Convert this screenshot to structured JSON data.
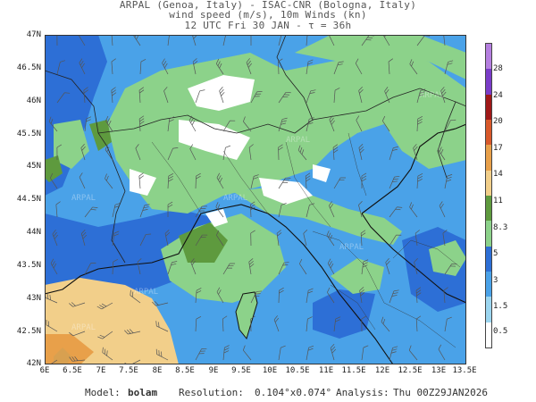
{
  "header": {
    "line1": "ARPAL (Genoa, Italy)  -  ISAC-CNR (Bologna, Italy)",
    "line2": "wind speed (m/s), 10m Winds (kn)",
    "line3": "12 UTC Fri 30 JAN  -  τ = 36h"
  },
  "axes": {
    "lat_labels": [
      "47N",
      "46.5N",
      "46N",
      "45.5N",
      "45N",
      "44.5N",
      "44N",
      "43.5N",
      "43N",
      "42.5N",
      "42N"
    ],
    "lon_labels": [
      "6E",
      "6.5E",
      "7E",
      "7.5E",
      "8E",
      "8.5E",
      "9E",
      "9.5E",
      "10E",
      "10.5E",
      "11E",
      "11.5E",
      "12E",
      "12.5E",
      "13E",
      "13.5E"
    ]
  },
  "colorbar": {
    "labels": [
      "28",
      "24",
      "20",
      "17",
      "14",
      "11",
      "8.3",
      "5",
      "3",
      "1.5",
      "0.5"
    ],
    "colors": [
      "#b57fe0",
      "#7a3cc8",
      "#a01818",
      "#d8582a",
      "#e8a04a",
      "#f2cf8a",
      "#5e9a3e",
      "#8cd28a",
      "#2d6fd6",
      "#4aa2e8",
      "#9cd6f0",
      "#ffffff"
    ]
  },
  "watermark": "ARPAL",
  "footer": {
    "model_label": "Model:",
    "model_value": "bolam",
    "resolution_label": "Resolution:",
    "resolution_value": "0.104°x0.074°",
    "analysis_label": "Analysis:",
    "analysis_value": "Thu 00Z29JAN2026"
  }
}
